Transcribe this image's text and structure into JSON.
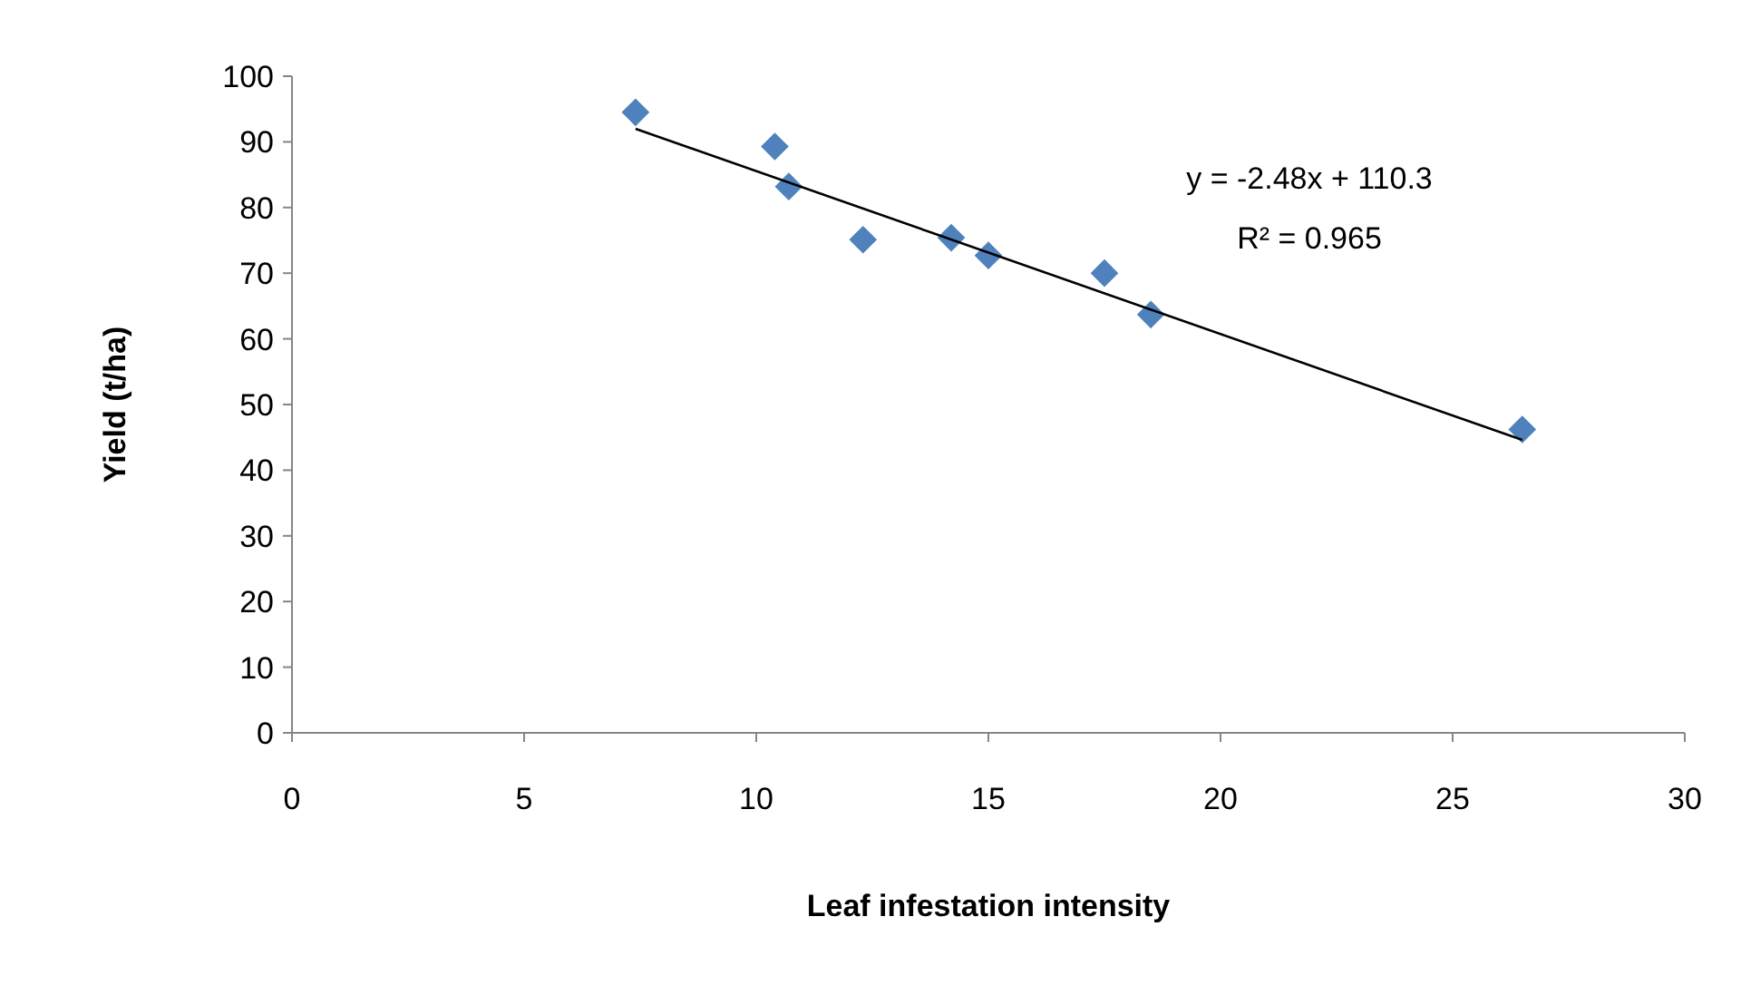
{
  "chart_data": {
    "type": "scatter",
    "xlabel": "Leaf infestation intensity",
    "ylabel": "Yield (t/ha)",
    "xlim": [
      0,
      30
    ],
    "xticks": [
      0,
      5,
      10,
      15,
      20,
      25,
      30
    ],
    "ylim": [
      0,
      100
    ],
    "yticks": [
      0,
      10,
      20,
      30,
      40,
      50,
      60,
      70,
      80,
      90,
      100
    ],
    "grid": false,
    "marker": "diamond",
    "series": [
      {
        "color": "#4f81bd",
        "x": [
          7.4,
          10.4,
          10.7,
          12.3,
          14.2,
          15.0,
          17.5,
          18.5,
          26.5
        ],
        "values": [
          94.5,
          89.3,
          83.2,
          75.1,
          75.4,
          72.7,
          70.0,
          63.7,
          46.2
        ]
      },
      {
        "type": "line",
        "color": "#000000",
        "x": [
          7.4,
          26.5
        ],
        "values": [
          92.0,
          44.6
        ],
        "marker": "none",
        "line_style": "solid"
      }
    ],
    "annotations": [
      "y = -2.48x + 110.3",
      "R² = 0.965"
    ]
  }
}
